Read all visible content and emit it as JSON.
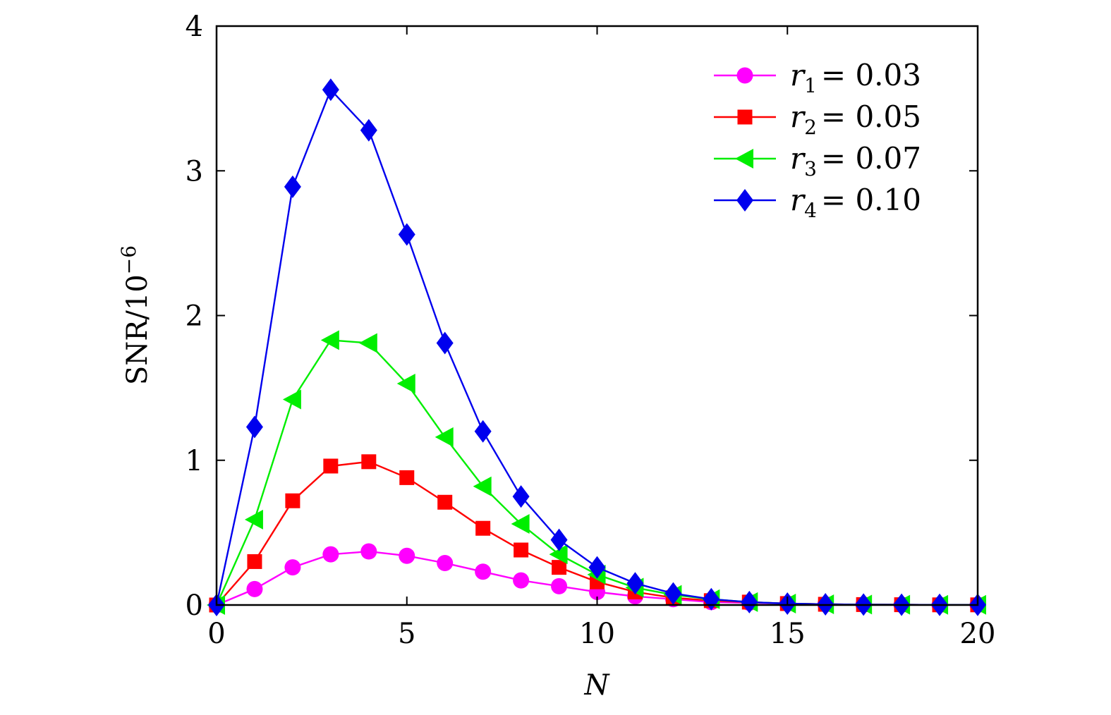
{
  "chart_data": {
    "type": "line",
    "title": "",
    "xlabel": "N",
    "ylabel": "SNR/10",
    "ylabel_exponent": "−6",
    "xlim": [
      0,
      20
    ],
    "ylim": [
      0,
      4
    ],
    "x_ticks": [
      0,
      5,
      10,
      15,
      20
    ],
    "y_ticks": [
      0,
      1,
      2,
      3,
      4
    ],
    "grid": false,
    "legend_position": "top-right",
    "x": [
      0,
      1,
      2,
      3,
      4,
      5,
      6,
      7,
      8,
      9,
      10,
      11,
      12,
      13,
      14,
      15,
      16,
      17,
      18,
      19,
      20
    ],
    "series": [
      {
        "legend": {
          "var": "r",
          "sub": "1",
          "value": "= 0.03"
        },
        "color": "#ff00ff",
        "marker": "circle",
        "values": [
          0,
          0.11,
          0.26,
          0.35,
          0.37,
          0.34,
          0.29,
          0.23,
          0.17,
          0.13,
          0.09,
          0.06,
          0.04,
          0.02,
          0.015,
          0.01,
          0.005,
          0.003,
          0.002,
          0.001,
          0.001
        ]
      },
      {
        "legend": {
          "var": "r",
          "sub": "2",
          "value": "= 0.05"
        },
        "color": "#ff0000",
        "marker": "square",
        "values": [
          0,
          0.3,
          0.72,
          0.96,
          0.99,
          0.88,
          0.71,
          0.53,
          0.38,
          0.26,
          0.16,
          0.09,
          0.05,
          0.03,
          0.02,
          0.01,
          0.005,
          0.003,
          0.002,
          0.001,
          0.001
        ]
      },
      {
        "legend": {
          "var": "r",
          "sub": "3",
          "value": "= 0.07"
        },
        "color": "#00ee00",
        "marker": "triangle-left",
        "values": [
          0,
          0.59,
          1.42,
          1.83,
          1.81,
          1.53,
          1.16,
          0.82,
          0.56,
          0.35,
          0.21,
          0.12,
          0.07,
          0.04,
          0.02,
          0.01,
          0.005,
          0.003,
          0.002,
          0.001,
          0.001
        ]
      },
      {
        "legend": {
          "var": "r",
          "sub": "4",
          "value": "= 0.10"
        },
        "color": "#0000ee",
        "marker": "diamond",
        "values": [
          0,
          1.23,
          2.89,
          3.56,
          3.28,
          2.56,
          1.81,
          1.2,
          0.75,
          0.45,
          0.26,
          0.15,
          0.08,
          0.04,
          0.02,
          0.01,
          0.005,
          0.003,
          0.002,
          0.001,
          0.001
        ]
      }
    ]
  }
}
